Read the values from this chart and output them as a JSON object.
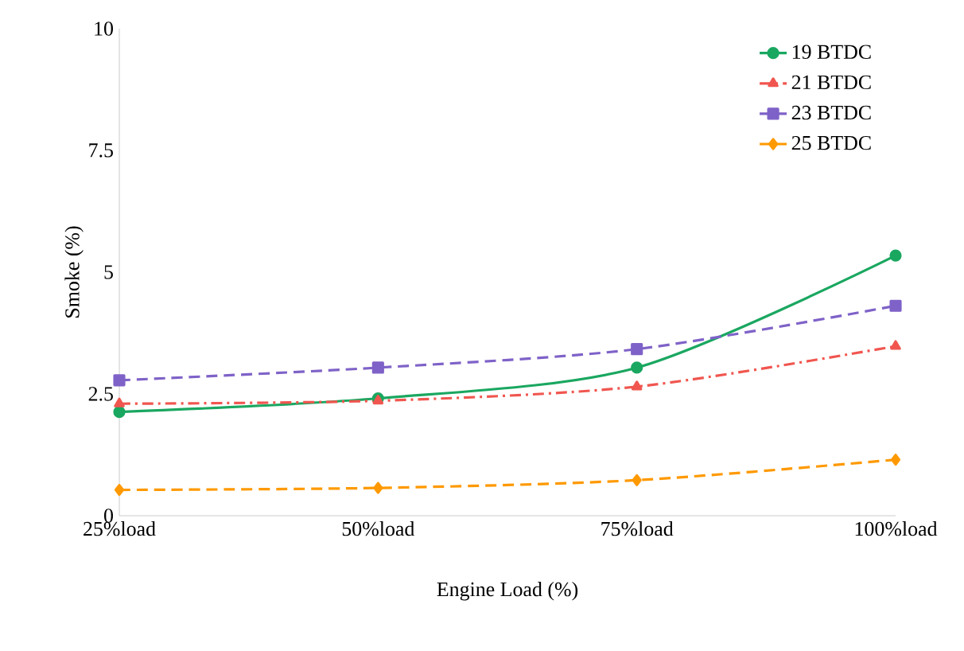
{
  "chart_data": {
    "type": "line",
    "xlabel": "Engine Load (%)",
    "ylabel": "Smoke (%)",
    "categories": [
      "25%load",
      "50%load",
      "75%load",
      "100%load"
    ],
    "series": [
      {
        "name": "19 BTDC",
        "color": "#1aa760",
        "marker": "circle",
        "line_style": "solid",
        "values": [
          2.13,
          2.41,
          3.04,
          5.34
        ]
      },
      {
        "name": "21 BTDC",
        "color": "#f0564f",
        "marker": "triangle",
        "line_style": "dashdot",
        "values": [
          2.3,
          2.36,
          2.65,
          3.48
        ]
      },
      {
        "name": "23 BTDC",
        "color": "#7f62c8",
        "marker": "square",
        "line_style": "dashed",
        "values": [
          2.78,
          3.04,
          3.42,
          4.31
        ]
      },
      {
        "name": "25 BTDC",
        "color": "#ff9900",
        "marker": "diamond",
        "line_style": "dashed",
        "values": [
          0.53,
          0.57,
          0.73,
          1.15
        ]
      }
    ],
    "ylim": [
      0,
      10
    ],
    "yticks": [
      0,
      2.5,
      5,
      7.5,
      10
    ],
    "grid": false,
    "legend": "top right"
  }
}
